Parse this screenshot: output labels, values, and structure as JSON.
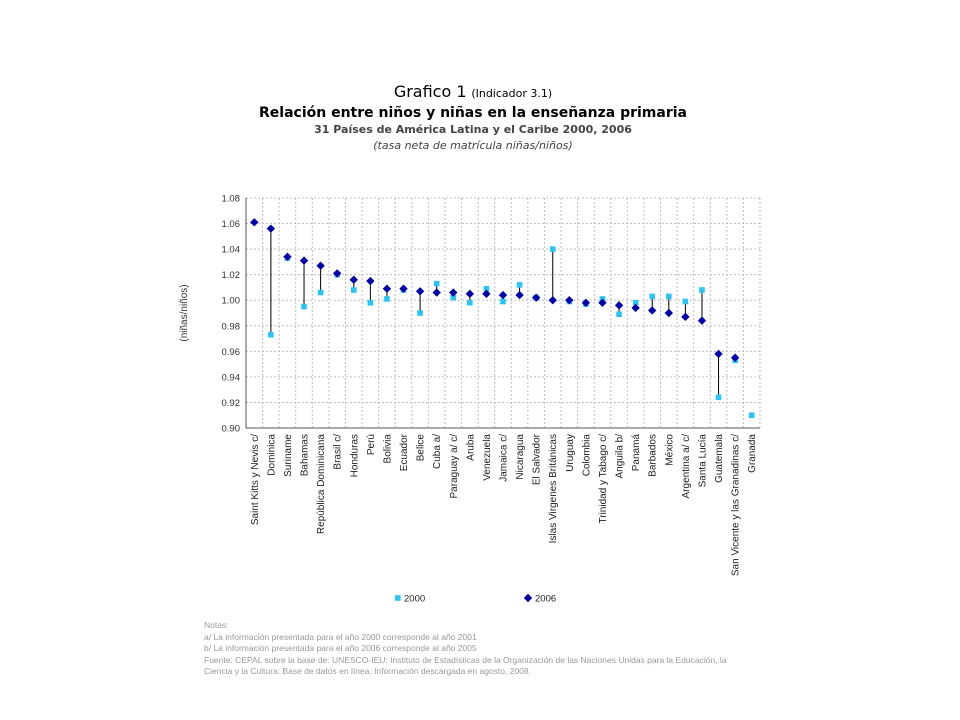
{
  "header": {
    "title_main": "Grafico 1",
    "title_indicator": "(Indicador 3.1)",
    "subtitle": "Relación entre niños y niñas en la enseñanza primaria",
    "scope": "31 Países de América Latina y el Caribe 2000, 2006",
    "measure": "(tasa neta de matrícula niñas/niños)"
  },
  "chart_data": {
    "type": "scatter",
    "ylabel": "(niñas/niños)",
    "ylim": [
      0.9,
      1.08
    ],
    "yticks": [
      "1.08",
      "1.06",
      "1.04",
      "1.02",
      "1.00",
      "0.98",
      "0.96",
      "0.94",
      "0.92",
      "0.90"
    ],
    "grid": true,
    "legend_position": "bottom",
    "categories": [
      "Saint Kitts y Nevis c/",
      "Dominica",
      "Suriname",
      "Bahamas",
      "República Dominicana",
      "Brasil c/",
      "Honduras",
      "Perú",
      "Bolivia",
      "Ecuador",
      "Belice",
      "Cuba a/",
      "Paraguay a/ c/",
      "Aruba",
      "Venezuela",
      "Jamaica c/",
      "Nicaragua",
      "El Salvador",
      "Islas Virgenes Británicas",
      "Uruguay",
      "Colombia",
      "Trinidad y Tabago c/",
      "Anguila b/",
      "Panamá",
      "Barbados",
      "México",
      "Argentina a/ c/",
      "Santa Lucía",
      "Guatemala",
      "San Vicente y las Granadinas c/",
      "Granada"
    ],
    "series": [
      {
        "name": "2000",
        "marker": "square",
        "color": "#29c5f6",
        "values": [
          null,
          0.973,
          1.033,
          0.995,
          1.006,
          1.02,
          1.008,
          0.998,
          1.001,
          1.008,
          0.99,
          1.013,
          1.002,
          0.998,
          1.009,
          0.999,
          1.012,
          1.002,
          1.04,
          0.999,
          0.997,
          1.001,
          0.989,
          0.998,
          1.003,
          1.003,
          0.999,
          1.008,
          0.924,
          0.953,
          0.91
        ]
      },
      {
        "name": "2006",
        "marker": "diamond",
        "color": "#0000aa",
        "values": [
          1.061,
          1.056,
          1.034,
          1.031,
          1.027,
          1.021,
          1.016,
          1.015,
          1.009,
          1.009,
          1.007,
          1.006,
          1.006,
          1.005,
          1.005,
          1.004,
          1.004,
          1.002,
          1.0,
          1.0,
          0.998,
          0.998,
          0.996,
          0.994,
          0.992,
          0.99,
          0.987,
          0.984,
          0.958,
          0.955,
          null
        ]
      }
    ]
  },
  "notes": {
    "heading": "Notas:",
    "a": "a/ La información presentada para el año 2000 corresponde al año 2001",
    "b": "b/ La información presentada para el año 2006 corresponde al año 2005",
    "source_1": "Fuente: CEPAL sobre la base de: UNESCO-IEU: Instituto de Estadísticas de la Organización de las Naciones Unidas para la Educación, la",
    "source_2": "Ciencia y la Cultura: Base de datos en línea. Información descargada en agosto, 2008."
  }
}
